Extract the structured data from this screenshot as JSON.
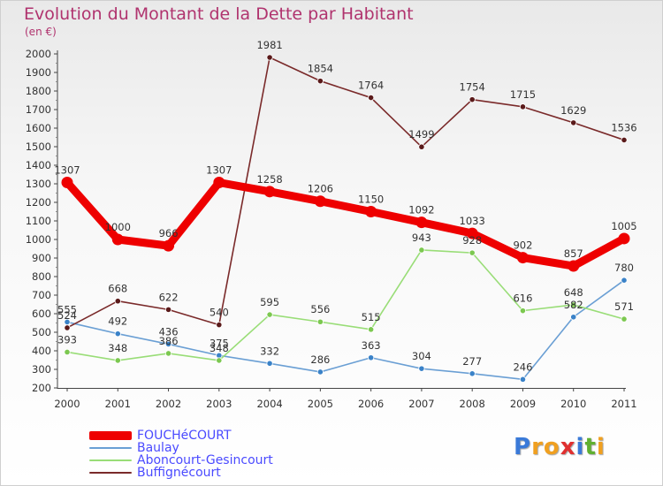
{
  "title": "Evolution du Montant de la Dette par Habitant",
  "subtitle": "(en €)",
  "logo": {
    "letters": [
      "P",
      "r",
      "o",
      "x",
      "i",
      "t",
      "i"
    ],
    "colors": [
      "#3a7ad8",
      "#f0a020",
      "#f0a020",
      "#e03030",
      "#3a7ad8",
      "#60b030",
      "#f0a020"
    ]
  },
  "chart_data": {
    "type": "line",
    "title": "Evolution du Montant de la Dette par Habitant",
    "subtitle": "(en €)",
    "xlabel": "",
    "ylabel": "",
    "x": [
      "2000",
      "2001",
      "2002",
      "2003",
      "2004",
      "2005",
      "2006",
      "2007",
      "2008",
      "2009",
      "2010",
      "2011"
    ],
    "ylim": [
      200,
      2000
    ],
    "yticks": [
      200,
      300,
      400,
      500,
      600,
      700,
      800,
      900,
      1000,
      1100,
      1200,
      1300,
      1400,
      1500,
      1600,
      1700,
      1800,
      1900,
      2000
    ],
    "grid": false,
    "legend_position": "bottom-left",
    "series": [
      {
        "name": "FOUCHéCOURT",
        "color": "#ee0000",
        "values": [
          1307,
          1000,
          966,
          1307,
          1258,
          1206,
          1150,
          1092,
          1033,
          902,
          857,
          1005
        ],
        "labels": [
          "1307",
          "1000",
          "966",
          "1307",
          "1258",
          "1206",
          "1150",
          "1092",
          "1033",
          "902",
          "857",
          "1005"
        ]
      },
      {
        "name": "Baulay",
        "color": "#6a9fd4",
        "values": [
          555,
          492,
          436,
          375,
          332,
          286,
          363,
          304,
          277,
          246,
          582,
          780
        ],
        "labels": [
          "555",
          "492",
          "436",
          "375",
          "332",
          "286",
          "363",
          "304",
          "277",
          "246",
          "582",
          "780"
        ]
      },
      {
        "name": "Aboncourt-Gesincourt",
        "color": "#99dd77",
        "values": [
          393,
          348,
          386,
          348,
          595,
          556,
          515,
          943,
          928,
          616,
          648,
          571
        ],
        "labels": [
          "393",
          "348",
          "386",
          "348",
          "595",
          "556",
          "515",
          "943",
          "928",
          "616",
          "648",
          "571"
        ]
      },
      {
        "name": "Buffignécourt",
        "color": "#7a2a2a",
        "values": [
          524,
          668,
          622,
          540,
          1981,
          1854,
          1764,
          1499,
          1754,
          1715,
          1629,
          1536
        ],
        "labels": [
          "524",
          "668",
          "622",
          "540",
          "1981",
          "1854",
          "1764",
          "1499",
          "1754",
          "1715",
          "1629",
          "1536"
        ]
      }
    ]
  }
}
